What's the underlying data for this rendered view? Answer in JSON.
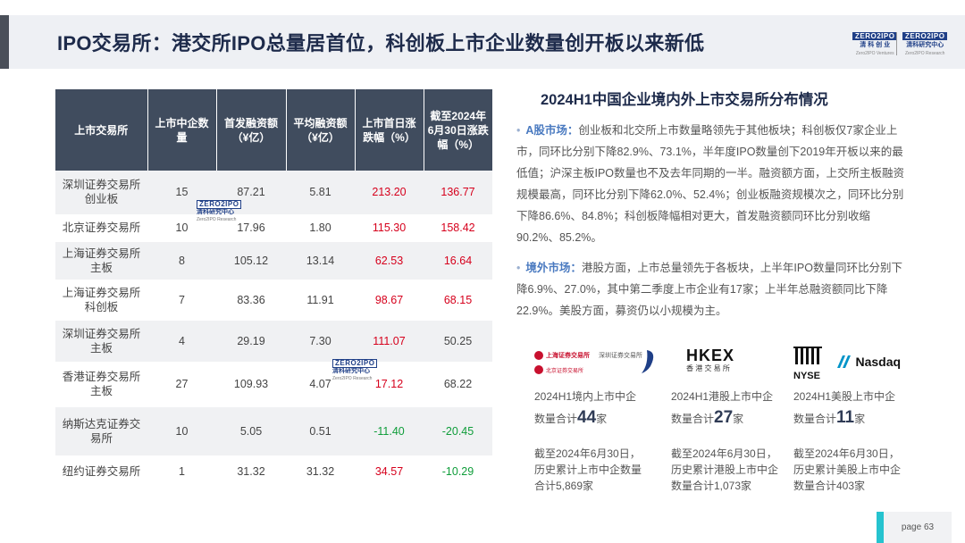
{
  "header": {
    "title": "IPO交易所：港交所IPO总量居首位，科创板上市企业数量创开板以来新低",
    "logo_left": {
      "mark": "ZERO2IPO",
      "cn": "清 科 创 业",
      "en": "Zero2IPO Ventures"
    },
    "logo_right": {
      "mark": "ZERO2IPO",
      "cn": "清科研究中心",
      "en": "Zero2IPO Research"
    }
  },
  "table": {
    "columns": [
      "上市交易所",
      "上市中企数量",
      "首发融资额（¥亿）",
      "平均融资额（¥亿）",
      "上市首日涨跌幅（%）",
      "截至2024年6月30日涨跌幅（%）"
    ],
    "rows": [
      {
        "exchange": "深圳证券交易所创业板",
        "count": "15",
        "raised": "87.21",
        "avg": "5.81",
        "first_day": "213.20",
        "to_date": "136.77"
      },
      {
        "exchange": "北京证券交易所",
        "count": "10",
        "raised": "17.96",
        "avg": "1.80",
        "first_day": "115.30",
        "to_date": "158.42"
      },
      {
        "exchange": "上海证券交易所主板",
        "count": "8",
        "raised": "105.12",
        "avg": "13.14",
        "first_day": "62.53",
        "to_date": "16.64"
      },
      {
        "exchange": "上海证券交易所科创板",
        "count": "7",
        "raised": "83.36",
        "avg": "11.91",
        "first_day": "98.67",
        "to_date": "68.15"
      },
      {
        "exchange": "深圳证券交易所主板",
        "count": "4",
        "raised": "29.19",
        "avg": "7.30",
        "first_day": "111.07",
        "to_date": "50.25"
      },
      {
        "exchange": "香港证券交易所主板",
        "count": "27",
        "raised": "109.93",
        "avg": "4.07",
        "first_day": "17.12",
        "to_date": "68.22"
      },
      {
        "exchange": "纳斯达克证券交易所",
        "count": "10",
        "raised": "5.05",
        "avg": "0.51",
        "first_day": "-11.40",
        "to_date": "-20.45"
      },
      {
        "exchange": "纽约证券交易所",
        "count": "1",
        "raised": "31.32",
        "avg": "31.32",
        "first_day": "34.57",
        "to_date": "-10.29"
      }
    ],
    "watermark": {
      "mark": "ZERO2IPO",
      "cn": "清科研究中心",
      "en": "Zero2IPO Research"
    }
  },
  "right": {
    "title": "2024H1中国企业境内外上市交易所分布情况",
    "a_share": {
      "key": "A股市场：",
      "text": "创业板和北交所上市数量略领先于其他板块；科创板仅7家企业上市，同环比分别下降82.9%、73.1%，半年度IPO数量创下2019年开板以来的最低值；沪深主板IPO数量也不及去年同期的一半。融资额方面，上交所主板融资规模最高，同环比分别下降62.0%、52.4%；创业板融资规模次之，同环比分别下降86.6%、84.8%；科创板降幅相对更大，首发融资额同环比分别收缩90.2%、85.2%。"
    },
    "overseas": {
      "key": "境外市场：",
      "text": "港股方面，上市总量领先于各板块，上半年IPO数量同环比分别下降6.9%、27.0%，其中第二季度上市企业有17家；上半年总融资额同比下降22.9%。美股方面，募资仍以小规模为主。"
    },
    "stats": [
      {
        "logo_a": "上海证券交易所",
        "logo_b": "深圳证券交易所",
        "logo_c": "北京证券交易所",
        "prefix": "2024H1境内上市中企",
        "prefix2": "数量合计",
        "value": "44",
        "unit": "家",
        "note": "截至2024年6月30日，历史累计上市中企数量合计5,869家"
      },
      {
        "logo_a": "HKEX",
        "logo_b": "香 港 交 易 所",
        "prefix": "2024H1港股上市中企",
        "prefix2": "数量合计",
        "value": "27",
        "unit": "家",
        "note": "截至2024年6月30日，历史累计港股上市中企数量合计1,073家"
      },
      {
        "logo_a": "NYSE",
        "logo_b": "Nasdaq",
        "prefix": "2024H1美股上市中企",
        "prefix2": "数量合计",
        "value": "11",
        "unit": "家",
        "note": "截至2024年6月30日，历史累计美股上市中企数量合计403家"
      }
    ]
  },
  "footer": {
    "page": "page  63"
  }
}
